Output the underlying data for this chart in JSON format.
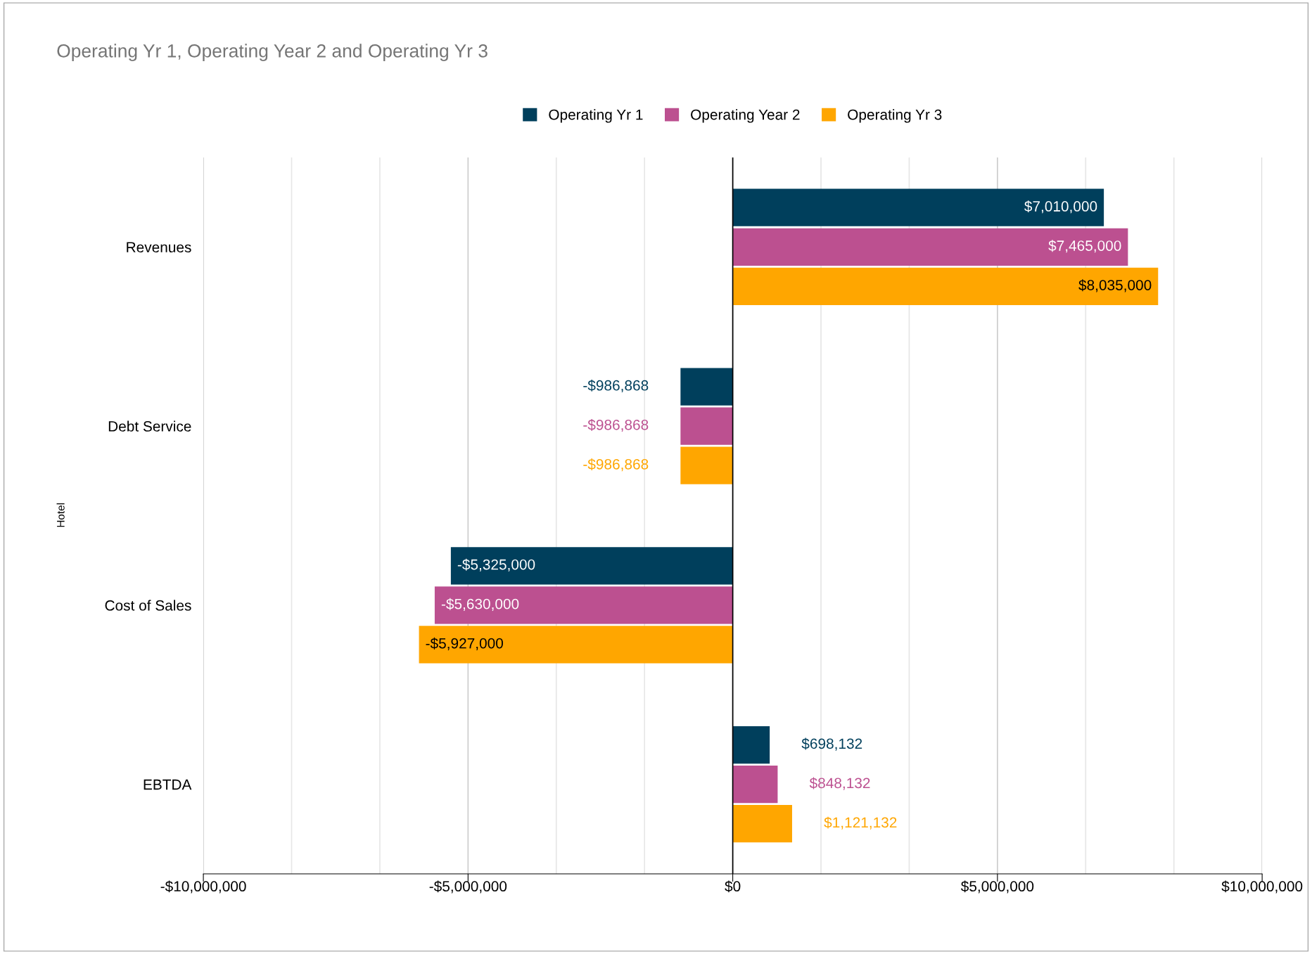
{
  "chart_data": {
    "type": "bar",
    "orientation": "horizontal",
    "title": "Operating Yr 1, Operating Year 2 and Operating Yr 3",
    "ylabel": "Hotel",
    "categories": [
      "Revenues",
      "Debt Service",
      "Cost of Sales",
      "EBTDA"
    ],
    "series": [
      {
        "name": "Operating Yr 1",
        "color": "#003f5c",
        "values": [
          7010000,
          -986868,
          -5325000,
          698132
        ],
        "value_labels": [
          "$7,010,000",
          "-$986,868",
          "-$5,325,000",
          "$698,132"
        ]
      },
      {
        "name": "Operating Year 2",
        "color": "#bc5090",
        "values": [
          7465000,
          -986868,
          -5630000,
          848132
        ],
        "value_labels": [
          "$7,465,000",
          "-$986,868",
          "-$5,630,000",
          "$848,132"
        ]
      },
      {
        "name": "Operating Yr 3",
        "color": "#ffa600",
        "values": [
          8035000,
          -986868,
          -5927000,
          1121132
        ],
        "value_labels": [
          "$8,035,000",
          "-$986,868",
          "-$5,927,000",
          "$1,121,132"
        ]
      }
    ],
    "xlim": [
      -10000000,
      10000000
    ],
    "xticks": [
      {
        "value": -10000000,
        "label": "-$10,000,000"
      },
      {
        "value": -8333333,
        "label": null
      },
      {
        "value": -6666667,
        "label": null
      },
      {
        "value": -5000000,
        "label": "-$5,000,000"
      },
      {
        "value": -3333333,
        "label": null
      },
      {
        "value": -1666667,
        "label": null
      },
      {
        "value": 0,
        "label": "$0"
      },
      {
        "value": 1666667,
        "label": null
      },
      {
        "value": 3333333,
        "label": null
      },
      {
        "value": 5000000,
        "label": "$5,000,000"
      },
      {
        "value": 6666667,
        "label": null
      },
      {
        "value": 8333333,
        "label": null
      },
      {
        "value": 10000000,
        "label": "$10,000,000"
      }
    ],
    "ref_lines": [
      {
        "axis": "x",
        "value": 0,
        "color": "#000000"
      }
    ],
    "grid": "x",
    "legend": "top"
  }
}
